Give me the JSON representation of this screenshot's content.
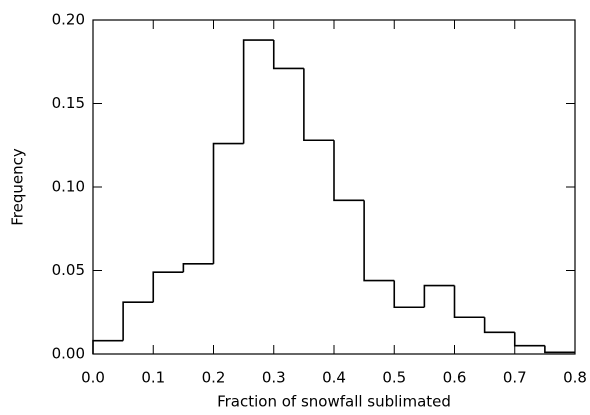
{
  "chart_data": {
    "type": "histogram",
    "xlabel": "Fraction of snowfall sublimated",
    "ylabel": "Frequency",
    "bins": [
      0.0,
      0.05,
      0.1,
      0.15,
      0.2,
      0.25,
      0.3,
      0.35,
      0.4,
      0.45,
      0.5,
      0.55,
      0.6,
      0.65,
      0.7,
      0.75,
      0.8
    ],
    "values": [
      0.008,
      0.031,
      0.049,
      0.054,
      0.126,
      0.188,
      0.171,
      0.128,
      0.092,
      0.044,
      0.028,
      0.041,
      0.022,
      0.013,
      0.005,
      0.001
    ],
    "color": "#000000",
    "xlim": [
      0.0,
      0.8
    ],
    "xticks": [
      {
        "value": 0,
        "label": "0.0"
      },
      0.1,
      0.2,
      0.3,
      0.4,
      0.5,
      0.6,
      0.7,
      0.8
    ],
    "ylim": [
      0.0,
      0.2
    ],
    "yticks": [
      {
        "value": 0,
        "label": "0.00"
      },
      0.05,
      {
        "value": 0.1,
        "label": "0.10"
      },
      0.15,
      {
        "value": 0.2,
        "label": "0.20"
      }
    ]
  }
}
